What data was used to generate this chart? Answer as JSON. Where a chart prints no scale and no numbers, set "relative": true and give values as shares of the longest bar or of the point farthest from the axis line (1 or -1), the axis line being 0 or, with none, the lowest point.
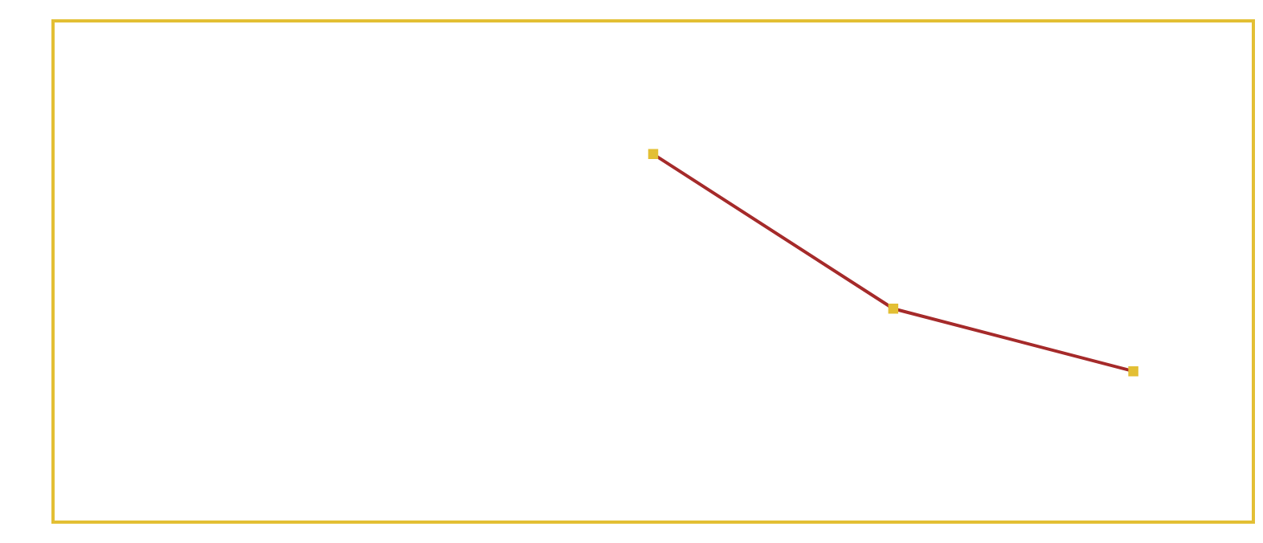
{
  "chart_data": {
    "type": "line",
    "relative": true,
    "categories": [
      null,
      null,
      null,
      null,
      null
    ],
    "marker": "square",
    "series": [
      {
        "color": "#a52a2a",
        "colors": [
          "#e3bf34",
          "#e3bf34",
          "#e3bf34",
          "#e3bf34",
          "#e3bf34"
        ],
        "values": [
          null,
          null,
          1,
          0.58,
          0.41
        ]
      }
    ]
  }
}
